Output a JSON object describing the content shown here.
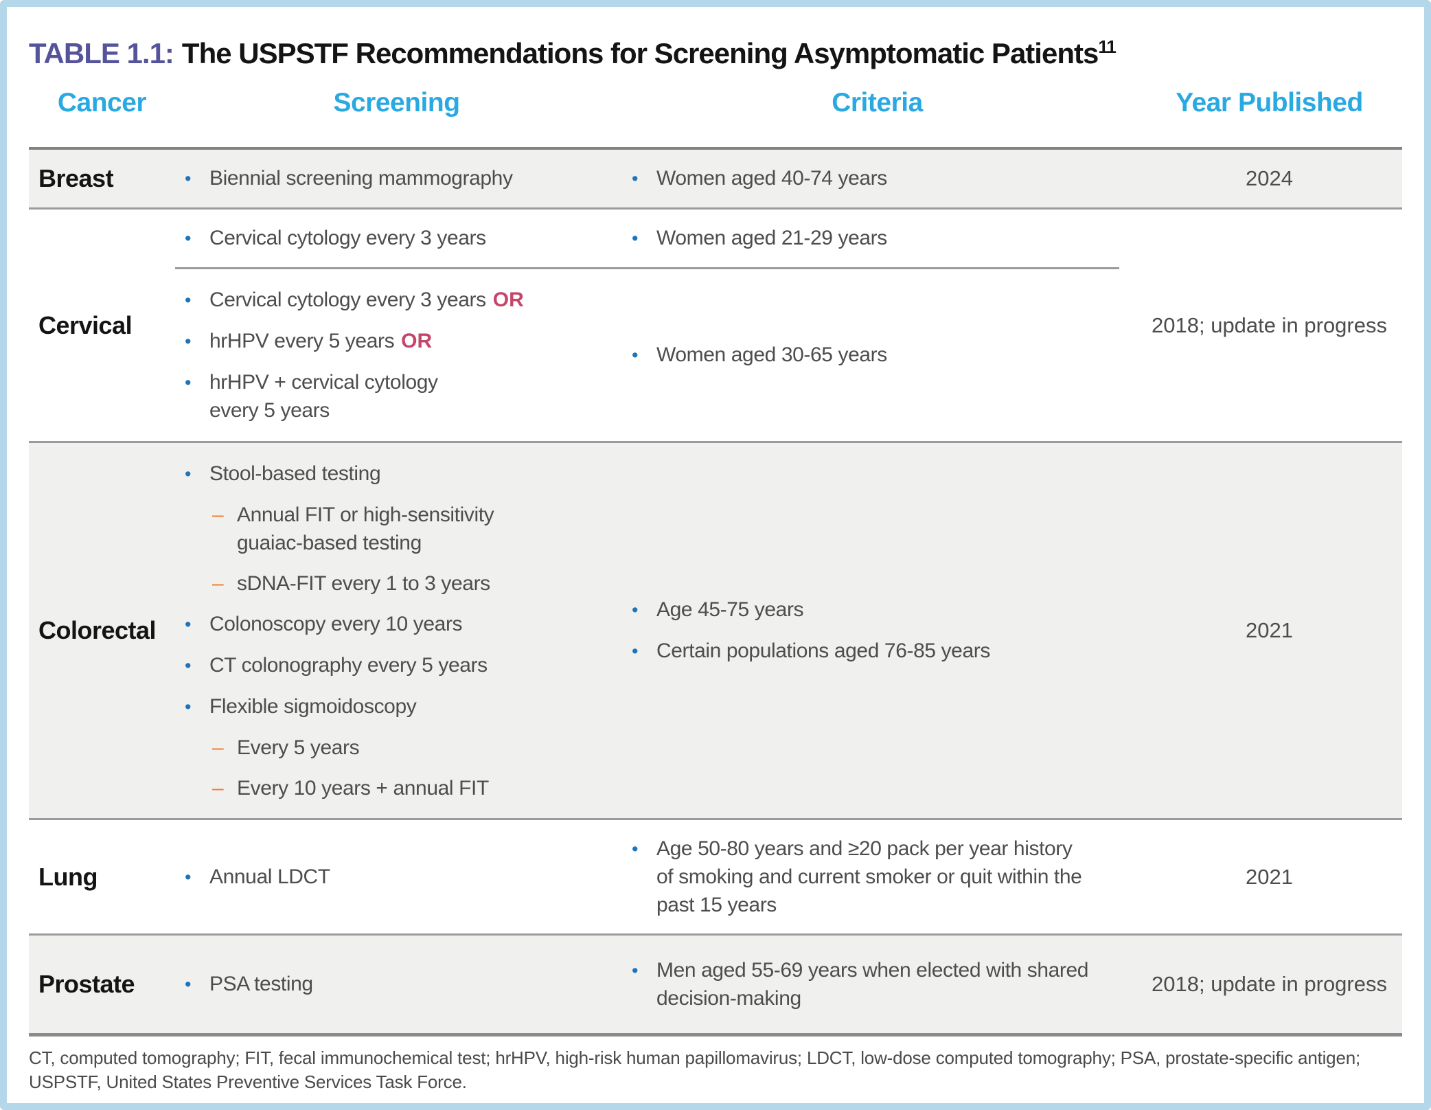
{
  "title": {
    "tag": "TABLE 1.1:",
    "text": "The USPSTF Recommendations for Screening Asymptomatic Patients",
    "superscript": "11"
  },
  "header": {
    "cancer": "Cancer",
    "screening": "Screening",
    "criteria": "Criteria",
    "year": "Year Published"
  },
  "rows": {
    "breast": {
      "label": "Breast",
      "screening": [
        {
          "lines": [
            "Biennial screening mammography"
          ]
        }
      ],
      "criteria": [
        {
          "lines": [
            "Women aged 40-74 years"
          ]
        }
      ],
      "year": "2024"
    },
    "cervical": {
      "label": "Cervical",
      "year": "2018; update in progress",
      "sub1": {
        "screening": [
          {
            "lines": [
              "Cervical cytology every 3 years"
            ]
          }
        ],
        "criteria": [
          {
            "lines": [
              "Women aged 21-29 years"
            ]
          }
        ]
      },
      "sub2": {
        "screening": [
          {
            "lines": [
              "Cervical cytology every 3 years"
            ],
            "or": "OR"
          },
          {
            "lines": [
              "hrHPV every 5 years"
            ],
            "or": "OR"
          },
          {
            "lines": [
              "hrHPV + cervical cytology",
              "every 5 years"
            ]
          }
        ],
        "criteria": [
          {
            "lines": [
              "Women aged 30-65 years"
            ]
          }
        ]
      }
    },
    "colorectal": {
      "label": "Colorectal",
      "year": "2021",
      "screening": [
        {
          "lines": [
            "Stool-based testing"
          ]
        },
        {
          "sub": true,
          "lines": [
            "Annual FIT or high-sensitivity",
            "guaiac-based testing"
          ]
        },
        {
          "sub": true,
          "lines": [
            "sDNA-FIT every 1 to 3 years"
          ]
        },
        {
          "lines": [
            "Colonoscopy every 10 years"
          ]
        },
        {
          "lines": [
            "CT colonography every 5 years"
          ]
        },
        {
          "lines": [
            "Flexible sigmoidoscopy"
          ]
        },
        {
          "sub": true,
          "lines": [
            "Every 5 years"
          ]
        },
        {
          "sub": true,
          "lines": [
            "Every 10 years + annual FIT"
          ]
        }
      ],
      "criteria": [
        {
          "lines": [
            "Age 45-75 years"
          ]
        },
        {
          "lines": [
            "Certain populations aged 76-85 years"
          ]
        }
      ]
    },
    "lung": {
      "label": "Lung",
      "year": "2021",
      "screening": [
        {
          "lines": [
            "Annual LDCT"
          ]
        }
      ],
      "criteria": [
        {
          "lines": [
            "Age 50-80 years and ≥20 pack per year history",
            "of smoking and current smoker or quit within the",
            "past 15 years"
          ]
        }
      ]
    },
    "prostate": {
      "label": "Prostate",
      "year": "2018; update in progress",
      "screening": [
        {
          "lines": [
            "PSA testing"
          ]
        }
      ],
      "criteria": [
        {
          "lines": [
            "Men aged 55-69 years when elected with shared",
            "decision-making"
          ]
        }
      ]
    }
  },
  "footnote": {
    "line1": "CT, computed tomography;  FIT, fecal immunochemical test; hrHPV, high-risk human papillomavirus; LDCT, low-dose computed tomography;  PSA, prostate-specific antigen;",
    "line2": "USPSTF, United States Preventive Services Task Force."
  },
  "colors": {
    "accent_header_blue": "#29a9e1",
    "title_purple": "#55549b",
    "bullet_blue": "#1e74b9",
    "dash_orange": "#f08033",
    "or_red": "#c64669",
    "shaded_row": "#f0f0ef",
    "page_border_blue": "#b5d7ea"
  }
}
